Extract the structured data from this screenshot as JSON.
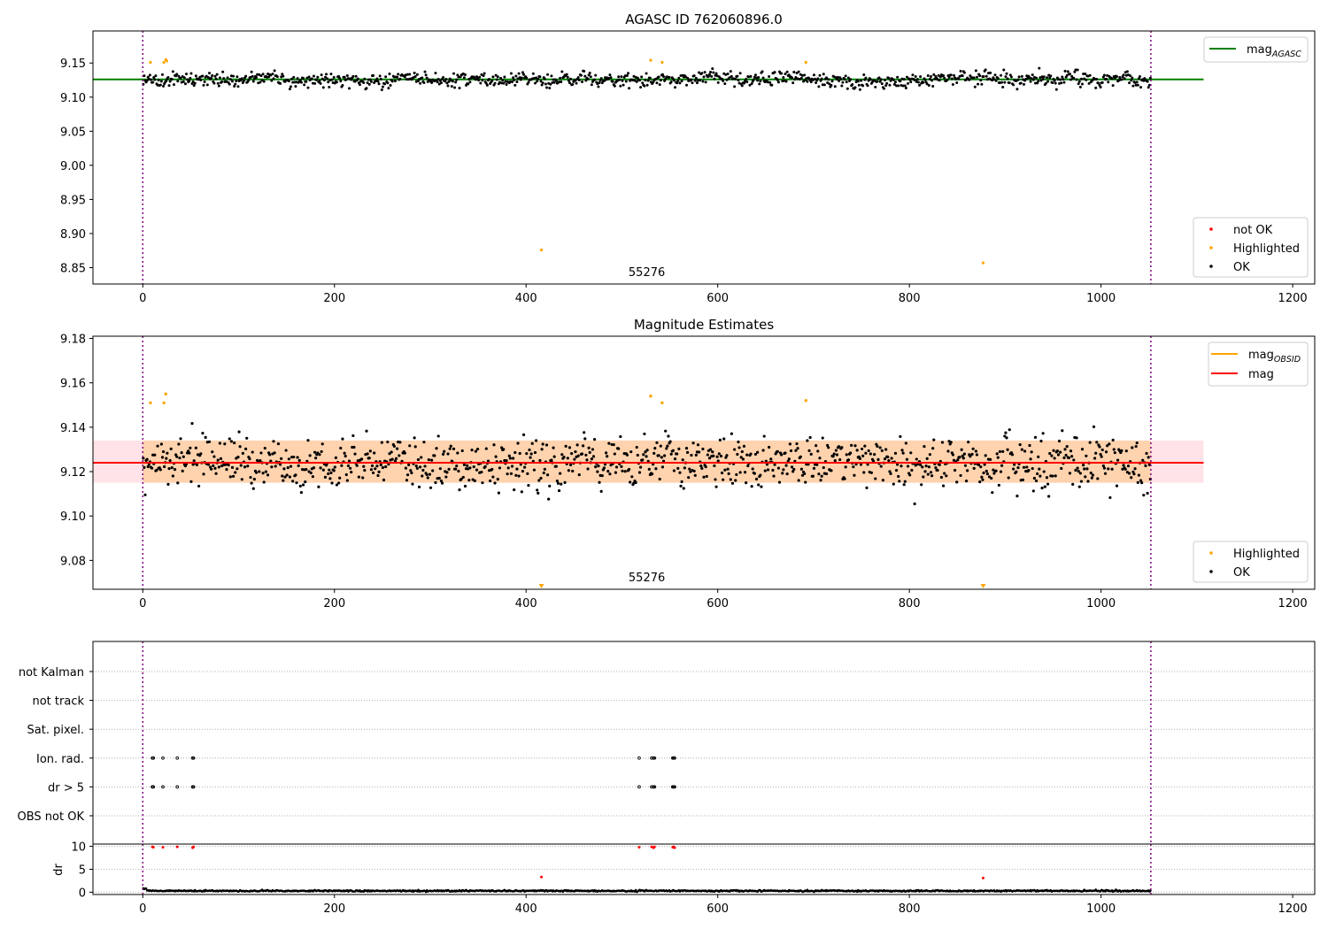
{
  "chart_data": [
    {
      "id": "mag",
      "type": "scatter",
      "title": "AGASC ID 762060896.0",
      "xlim": [
        -52,
        1223
      ],
      "ylim": [
        8.826,
        9.197
      ],
      "x_ticks": [
        0,
        200,
        400,
        600,
        800,
        1000,
        1200
      ],
      "y_ticks": [
        "8.85",
        "8.90",
        "8.95",
        "9.00",
        "9.05",
        "9.10",
        "9.15"
      ],
      "obsid_label": "55276",
      "obsid_label_x": 526,
      "obsid_bounds": [
        0,
        1052
      ],
      "reference_lines": [
        {
          "name": "mag_AGASC",
          "value": 9.126,
          "x_range": [
            -52,
            1107
          ],
          "color": "#008000"
        }
      ],
      "ok_points": {
        "count": 1052,
        "x_range": [
          0,
          1052
        ],
        "center": 9.125,
        "spread": 0.009,
        "min": 9.1,
        "max": 9.15,
        "color": "#000000"
      },
      "highlighted_points": {
        "color": "#ffa500",
        "points": [
          [
            8,
            9.151
          ],
          [
            22,
            9.151
          ],
          [
            24,
            9.155
          ],
          [
            25,
            9.153
          ],
          [
            416,
            8.876
          ],
          [
            530,
            9.154
          ],
          [
            542,
            9.151
          ],
          [
            692,
            9.151
          ],
          [
            877,
            8.857
          ]
        ]
      },
      "not_ok_points": {
        "color": "#ff0000",
        "points": []
      },
      "legend_upper": [
        {
          "label": "mag",
          "subscript": "AGASC",
          "kind": "line",
          "color": "#008000"
        }
      ],
      "legend_lower": [
        {
          "label": "not OK",
          "kind": "dot",
          "color": "#ff0000"
        },
        {
          "label": "Highlighted",
          "kind": "dot",
          "color": "#ffa500"
        },
        {
          "label": "OK",
          "kind": "dot",
          "color": "#000000"
        }
      ]
    },
    {
      "id": "estimates",
      "type": "scatter",
      "title": "Magnitude Estimates",
      "xlim": [
        -52,
        1223
      ],
      "ylim": [
        9.067,
        9.181
      ],
      "x_ticks": [
        0,
        200,
        400,
        600,
        800,
        1000,
        1200
      ],
      "y_ticks": [
        "9.08",
        "9.10",
        "9.12",
        "9.14",
        "9.16",
        "9.18"
      ],
      "obsid_label": "55276",
      "obsid_label_x": 526,
      "obsid_bounds": [
        0,
        1052
      ],
      "mag": 9.124,
      "mag_band": [
        9.115,
        9.134
      ],
      "mag_obsid": 9.124,
      "mag_obsid_band": [
        9.115,
        9.134
      ],
      "ok_points": {
        "count": 1052,
        "x_range": [
          0,
          1052
        ],
        "center": 9.124,
        "spread": 0.01,
        "min": 9.098,
        "max": 9.15,
        "color": "#000000"
      },
      "highlighted_points": {
        "color": "#ffa500",
        "points": [
          [
            8,
            9.151
          ],
          [
            22,
            9.151
          ],
          [
            24,
            9.155
          ],
          [
            530,
            9.154
          ],
          [
            542,
            9.151
          ],
          [
            692,
            9.152
          ]
        ]
      },
      "below_range_markers": {
        "color": "#ffa500",
        "x": [
          416,
          877
        ]
      },
      "legend_upper": [
        {
          "label": "mag",
          "subscript": "OBSID",
          "kind": "line",
          "color": "#ffa500"
        },
        {
          "label": "mag",
          "subscript": "",
          "kind": "line",
          "color": "#ff0000"
        }
      ],
      "legend_lower": [
        {
          "label": "Highlighted",
          "kind": "dot",
          "color": "#ffa500"
        },
        {
          "label": "OK",
          "kind": "dot",
          "color": "#000000"
        }
      ]
    },
    {
      "id": "flags",
      "type": "scatter",
      "xlim": [
        -52,
        1223
      ],
      "x_ticks": [
        0,
        200,
        400,
        600,
        800,
        1000,
        1200
      ],
      "obsid_bounds": [
        0,
        1052
      ],
      "flag_rows": [
        "not Kalman",
        "not track",
        "Sat. pixel.",
        "Ion. rad.",
        "dr > 5",
        "OBS not OK"
      ],
      "flag_points": {
        "Ion. rad.": [
          10,
          11,
          21,
          36,
          52,
          53,
          518,
          531,
          533,
          534,
          553,
          554,
          555
        ],
        "dr > 5": [
          10,
          11,
          21,
          36,
          52,
          53,
          518,
          531,
          533,
          534,
          553,
          554,
          555
        ]
      }
    },
    {
      "id": "dr",
      "type": "scatter",
      "ylabel": "dr",
      "xlim": [
        -52,
        1223
      ],
      "ylim": [
        -0.5,
        10.5
      ],
      "x_ticks": [
        0,
        200,
        400,
        600,
        800,
        1000,
        1200
      ],
      "y_ticks": [
        "0",
        "5",
        "10"
      ],
      "obsid_bounds": [
        0,
        1052
      ],
      "baseline": {
        "count": 1052,
        "x_range": [
          0,
          1052
        ],
        "typical": 0.3,
        "color": "#000000"
      },
      "high_points": {
        "color": "#ff0000",
        "points": [
          [
            10,
            9.9
          ],
          [
            11,
            9.8
          ],
          [
            21,
            9.8
          ],
          [
            36,
            9.9
          ],
          [
            52,
            9.7
          ],
          [
            53,
            9.9
          ],
          [
            518,
            9.8
          ],
          [
            531,
            9.9
          ],
          [
            533,
            9.7
          ],
          [
            534,
            9.9
          ],
          [
            553,
            9.8
          ],
          [
            554,
            9.9
          ],
          [
            555,
            9.7
          ],
          [
            416,
            3.3
          ],
          [
            877,
            3.1
          ]
        ]
      }
    }
  ]
}
